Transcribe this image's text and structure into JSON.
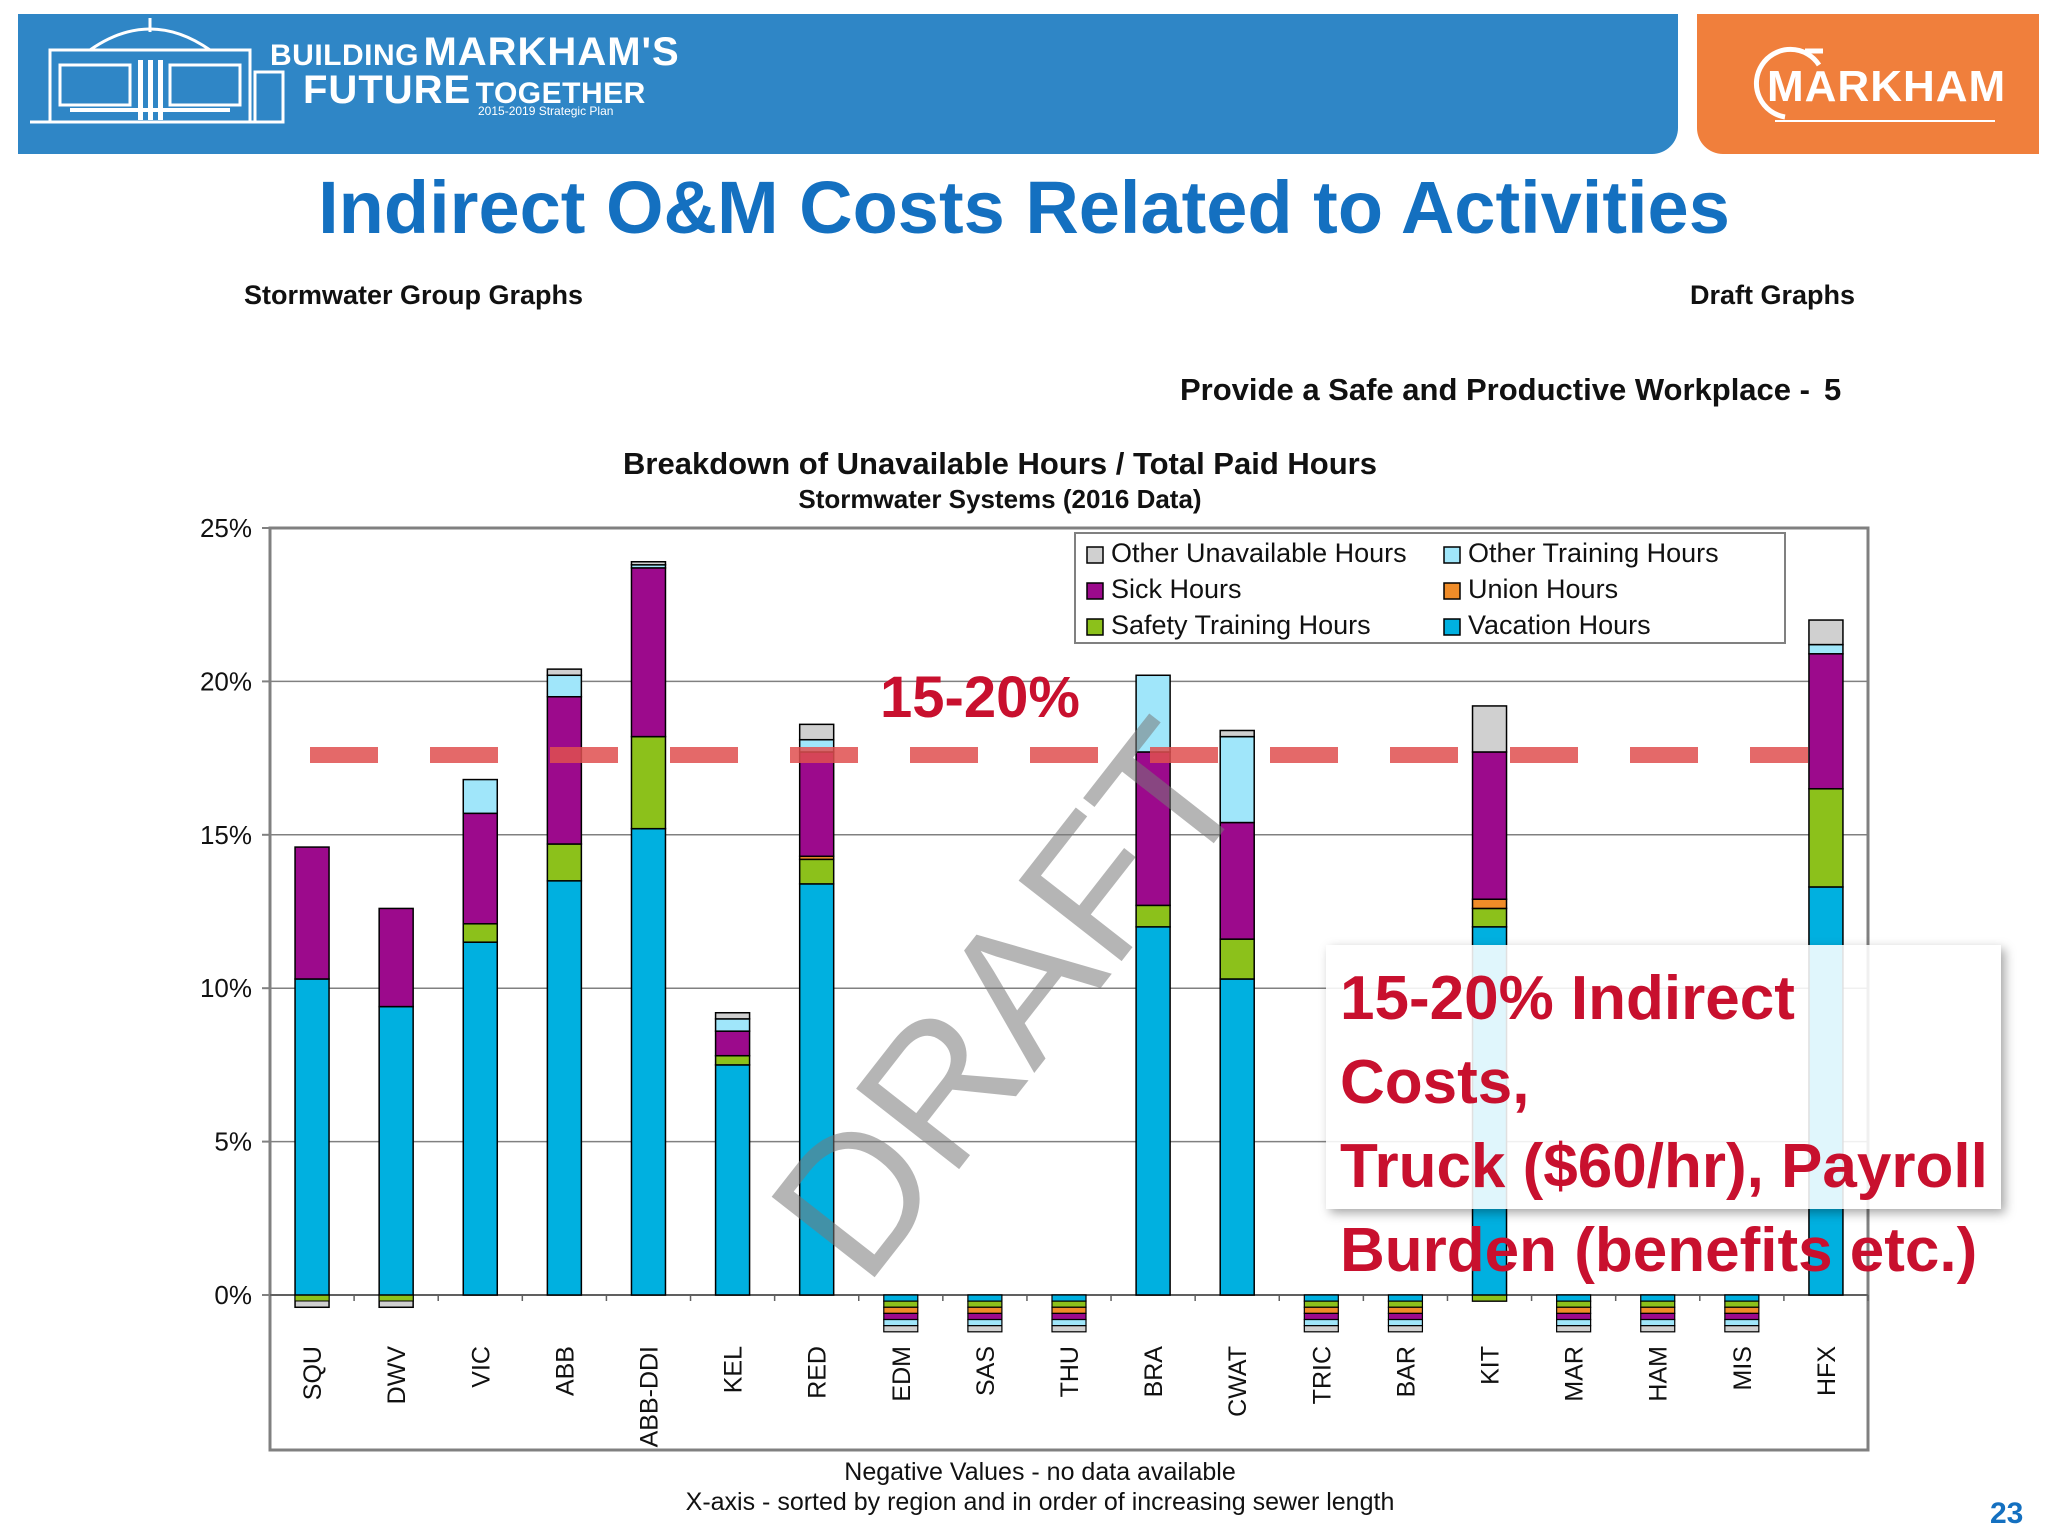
{
  "header": {
    "building_small": "BUILDING",
    "building_big": "MARKHAM'S",
    "future_big": "FUTURE",
    "together_small": "TOGETHER",
    "plan_years": "2015-2019 Strategic Plan",
    "city_logo": "MARKHAM",
    "banner_color": "#2f86c6",
    "logo_panel_color": "#f07f3c"
  },
  "title": "Indirect O&M Costs Related to Activities",
  "subtitle_left": "Stormwater Group Graphs",
  "subtitle_right": "Draft Graphs",
  "goal_label": "Provide a Safe and Productive Workplace -",
  "goal_number": "5",
  "callout": "15-20% Indirect Costs,\nTruck ($60/hr), Payroll\nBurden (benefits etc.)",
  "page_number": "23",
  "chart_data": {
    "type": "bar",
    "stacked": true,
    "title": "Breakdown of Unavailable Hours / Total Paid Hours",
    "subtitle": "Stormwater Systems (2016 Data)",
    "footnote_1": "Negative Values - no data available",
    "footnote_2": "X-axis - sorted by region and in order of increasing sewer length",
    "watermark": "DRAFT",
    "band_label": "15-20%",
    "band_level": 17.6,
    "ylim": [
      0,
      25
    ],
    "yticks": [
      "0%",
      "5%",
      "10%",
      "15%",
      "20%",
      "25%"
    ],
    "grid": true,
    "legend_position": "top-right",
    "categories": [
      "SQU",
      "DWV",
      "VIC",
      "ABB",
      "ABB-DDI",
      "KEL",
      "RED",
      "EDM",
      "SAS",
      "THU",
      "BRA",
      "CWAT",
      "TRIC",
      "BAR",
      "KIT",
      "MAR",
      "HAM",
      "MIS",
      "HFX"
    ],
    "series": [
      {
        "name": "Vacation Hours",
        "color": "#00b0e0",
        "values": [
          10.3,
          9.4,
          11.5,
          13.5,
          15.2,
          7.5,
          13.4,
          -0.2,
          -0.2,
          -0.2,
          12.0,
          10.3,
          -0.2,
          -0.2,
          12.0,
          -0.2,
          -0.2,
          -0.2,
          13.3
        ]
      },
      {
        "name": "Safety Training Hours",
        "color": "#8cc11b",
        "values": [
          0,
          0,
          0.6,
          1.2,
          3.0,
          0.3,
          0.8,
          -0.2,
          -0.2,
          -0.2,
          0.7,
          1.3,
          -0.2,
          -0.2,
          0.6,
          -0.2,
          -0.2,
          -0.2,
          3.2
        ]
      },
      {
        "name": "Union Hours",
        "color": "#f08c28",
        "values": [
          0,
          0,
          0,
          0,
          0,
          0,
          0.1,
          -0.2,
          -0.2,
          -0.2,
          0,
          0,
          -0.2,
          -0.2,
          0.3,
          -0.2,
          -0.2,
          -0.2,
          0
        ]
      },
      {
        "name": "Sick Hours",
        "color": "#9c0a8c",
        "values": [
          4.3,
          3.2,
          3.6,
          4.8,
          5.5,
          0.8,
          3.4,
          -0.2,
          -0.2,
          -0.2,
          5.0,
          3.8,
          -0.2,
          -0.2,
          4.8,
          -0.2,
          -0.2,
          -0.2,
          4.4
        ]
      },
      {
        "name": "Other Training Hours",
        "color": "#a0e6fa",
        "values": [
          0,
          0,
          1.1,
          0.7,
          0.1,
          0.4,
          0.4,
          -0.2,
          -0.2,
          -0.2,
          2.5,
          2.8,
          -0.2,
          -0.2,
          0,
          -0.2,
          -0.2,
          -0.2,
          0.3
        ]
      },
      {
        "name": "Other Unavailable Hours",
        "color": "#d0d0d0",
        "values": [
          0,
          0,
          0,
          0.2,
          0.1,
          0.2,
          0.5,
          -0.2,
          -0.2,
          -0.2,
          0,
          0.2,
          -0.2,
          -0.2,
          1.5,
          -0.2,
          -0.2,
          -0.2,
          0.8
        ]
      }
    ],
    "negative_offsets": {
      "SQU": -0.4,
      "DWV": -0.4,
      "KIT": -0.2
    },
    "legend_order": [
      "Other Unavailable Hours",
      "Other Training Hours",
      "Sick Hours",
      "Union Hours",
      "Safety Training Hours",
      "Vacation Hours"
    ]
  }
}
